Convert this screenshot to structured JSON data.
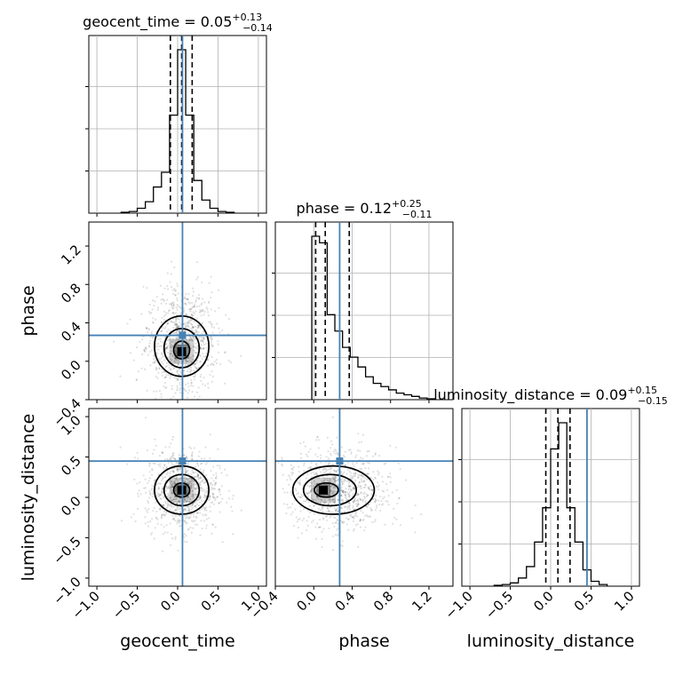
{
  "chart_data": {
    "type": "corner",
    "colors": {
      "truth": "#4682b4",
      "hist": "#000000",
      "grid": "#b0b0b0",
      "scatter": "#000000"
    },
    "params": [
      {
        "name": "geocent_time",
        "range": [
          -1.1,
          1.1
        ],
        "ticks": [
          -1.0,
          -0.5,
          0.0,
          0.5,
          1.0
        ],
        "tick_labels": [
          "−1.0",
          "−0.5",
          "0.0",
          "0.5",
          "1.0"
        ],
        "truth": 0.06,
        "quantiles": [
          -0.09,
          0.05,
          0.18
        ],
        "title_main": "geocent_time = 0.05",
        "title_plus": "+0.13",
        "title_minus": "−0.14",
        "hist": {
          "edges": [
            -0.7,
            -0.6,
            -0.5,
            -0.4,
            -0.3,
            -0.2,
            -0.1,
            0.0,
            0.1,
            0.2,
            0.3,
            0.4,
            0.5,
            0.6,
            0.7
          ],
          "counts": [
            0.005,
            0.01,
            0.03,
            0.07,
            0.16,
            0.25,
            0.6,
            1.0,
            0.6,
            0.2,
            0.08,
            0.03,
            0.01,
            0.005
          ]
        }
      },
      {
        "name": "phase",
        "range": [
          -0.4,
          1.45
        ],
        "ticks": [
          -0.4,
          0.0,
          0.4,
          0.8,
          1.2
        ],
        "tick_labels": [
          "−0.4",
          "0.0",
          "0.4",
          "0.8",
          "1.2"
        ],
        "truth": 0.27,
        "quantiles": [
          0.02,
          0.12,
          0.37
        ],
        "title_main": "phase = 0.12",
        "title_plus": "+0.25",
        "title_minus": "−0.11",
        "hist": {
          "edges": [
            -0.02,
            0.06,
            0.14,
            0.22,
            0.3,
            0.38,
            0.46,
            0.54,
            0.62,
            0.7,
            0.78,
            0.86,
            0.94,
            1.02,
            1.1,
            1.18,
            1.26
          ],
          "counts": [
            1.0,
            0.96,
            0.52,
            0.42,
            0.32,
            0.26,
            0.2,
            0.14,
            0.1,
            0.08,
            0.06,
            0.04,
            0.03,
            0.02,
            0.01,
            0.005
          ]
        }
      },
      {
        "name": "luminosity_distance",
        "range": [
          -1.1,
          1.1
        ],
        "ticks": [
          -1.0,
          -0.5,
          0.0,
          0.5,
          1.0
        ],
        "tick_labels": [
          "−1.0",
          "−0.5",
          "0.0",
          "0.5",
          "1.0"
        ],
        "truth": 0.45,
        "quantiles": [
          -0.06,
          0.09,
          0.24
        ],
        "title_main": "luminosity_distance = 0.09",
        "title_plus": "+0.15",
        "title_minus": "−0.15",
        "hist": {
          "edges": [
            -0.7,
            -0.6,
            -0.5,
            -0.4,
            -0.3,
            -0.2,
            -0.1,
            0.0,
            0.1,
            0.2,
            0.3,
            0.4,
            0.5,
            0.6,
            0.7
          ],
          "counts": [
            0.005,
            0.01,
            0.02,
            0.05,
            0.12,
            0.27,
            0.48,
            0.84,
            1.0,
            0.48,
            0.27,
            0.1,
            0.03,
            0.01
          ]
        }
      }
    ],
    "ylabel_only": [
      "phase",
      "luminosity_distance"
    ],
    "pairs": [
      {
        "x": "geocent_time",
        "y": "phase",
        "center": [
          0.05,
          0.1
        ],
        "spread": [
          0.16,
          0.2
        ],
        "skew_y": 0.12,
        "contour_radii": [
          0.5,
          1.1,
          1.7
        ]
      },
      {
        "x": "geocent_time",
        "y": "luminosity_distance",
        "center": [
          0.05,
          0.09
        ],
        "spread": [
          0.16,
          0.18
        ],
        "skew_y": 0.0,
        "contour_radii": [
          0.5,
          1.1,
          1.7
        ]
      },
      {
        "x": "phase",
        "y": "luminosity_distance",
        "center": [
          0.1,
          0.09
        ],
        "spread": [
          0.16,
          0.18
        ],
        "skew_x": 0.2,
        "contour_radii": [
          0.5,
          1.1,
          1.7
        ]
      }
    ]
  }
}
